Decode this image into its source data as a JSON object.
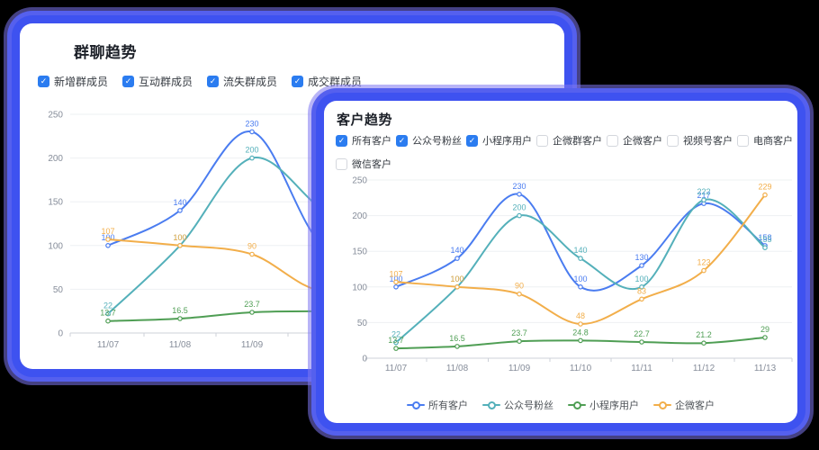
{
  "colors": {
    "checkbox_blue": "#2b7cf0",
    "glow_blue": "#3e52f0",
    "series_blue": "#4a7cf0",
    "series_teal": "#54b0ba",
    "series_green": "#4f9e54",
    "series_orange": "#f2ae4a"
  },
  "back_card": {
    "title": "群聊趋势",
    "checkboxes": [
      {
        "label": "新增群成员",
        "checked": true
      },
      {
        "label": "互动群成员",
        "checked": true
      },
      {
        "label": "流失群成员",
        "checked": true
      },
      {
        "label": "成交群成员",
        "checked": true
      }
    ]
  },
  "front_card": {
    "title": "客户趋势",
    "checkbox_rows": [
      [
        {
          "label": "所有客户",
          "checked": true
        },
        {
          "label": "公众号粉丝",
          "checked": true
        },
        {
          "label": "小程序用户",
          "checked": true
        },
        {
          "label": "企微群客户",
          "checked": false
        },
        {
          "label": "企微客户",
          "checked": false
        },
        {
          "label": "视频号客户",
          "checked": false
        },
        {
          "label": "电商客户",
          "checked": false
        }
      ],
      [
        {
          "label": "微信客户",
          "checked": false
        }
      ]
    ],
    "legend": [
      {
        "label": "所有客户",
        "color": "#4a7cf0"
      },
      {
        "label": "公众号粉丝",
        "color": "#54b0ba"
      },
      {
        "label": "小程序用户",
        "color": "#4f9e54"
      },
      {
        "label": "企微客户",
        "color": "#f2ae4a"
      }
    ]
  },
  "chart_data": [
    {
      "id": "group-chat-trend",
      "type": "line",
      "title": "群聊趋势",
      "categories": [
        "11/07",
        "11/08",
        "11/09",
        "11/10",
        "11/11",
        "11/12",
        "11/13"
      ],
      "ylim": [
        0,
        250
      ],
      "yticks": [
        0,
        50,
        100,
        150,
        200,
        250
      ],
      "grid": true,
      "series": [
        {
          "name": "新增群成员",
          "color": "#4a7cf0",
          "values": [
            100,
            140,
            230,
            100,
            130,
            217,
            158
          ]
        },
        {
          "name": "互动群成员",
          "color": "#54b0ba",
          "values": [
            22,
            100,
            200,
            140,
            100,
            222,
            155
          ]
        },
        {
          "name": "流失群成员",
          "color": "#4f9e54",
          "values": [
            13.7,
            16.5,
            23.7,
            24.8,
            22.7,
            21.2,
            29
          ]
        },
        {
          "name": "成交群成员",
          "color": "#f2ae4a",
          "values": [
            107,
            100,
            90,
            48,
            83,
            123,
            229
          ]
        }
      ]
    },
    {
      "id": "customer-trend",
      "type": "line",
      "title": "客户趋势",
      "categories": [
        "11/07",
        "11/08",
        "11/09",
        "11/10",
        "11/11",
        "11/12",
        "11/13"
      ],
      "ylim": [
        0,
        250
      ],
      "yticks": [
        0,
        50,
        100,
        150,
        200,
        250
      ],
      "grid": true,
      "legend_position": "bottom",
      "series": [
        {
          "name": "所有客户",
          "color": "#4a7cf0",
          "values": [
            100,
            140,
            230,
            100,
            130,
            217,
            158
          ]
        },
        {
          "name": "公众号粉丝",
          "color": "#54b0ba",
          "values": [
            22,
            100,
            200,
            140,
            100,
            222,
            155
          ]
        },
        {
          "name": "小程序用户",
          "color": "#4f9e54",
          "values": [
            13.7,
            16.5,
            23.7,
            24.8,
            22.7,
            21.2,
            29
          ]
        },
        {
          "name": "企微客户",
          "color": "#f2ae4a",
          "values": [
            107,
            100,
            90,
            48,
            83,
            123,
            229
          ]
        }
      ]
    }
  ]
}
